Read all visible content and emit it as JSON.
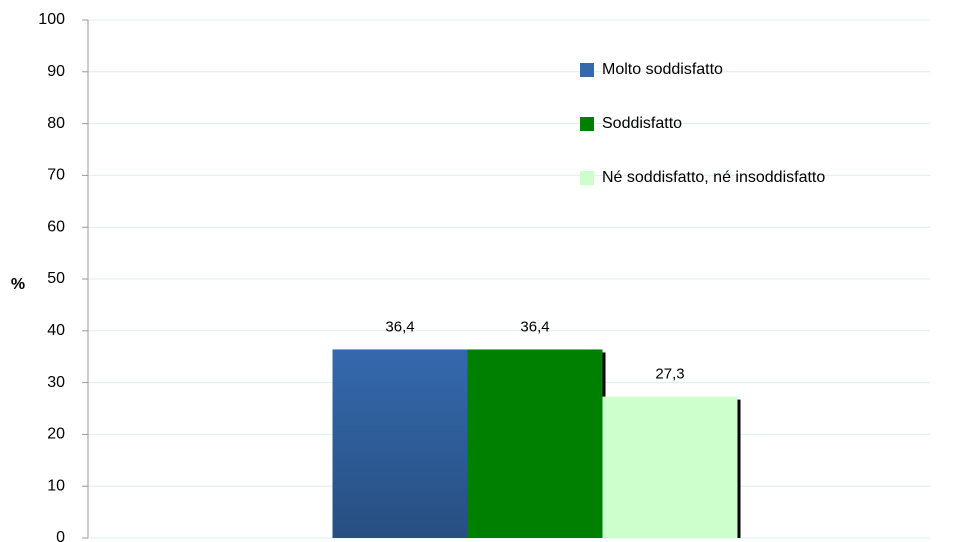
{
  "chart_data": {
    "type": "bar",
    "y_label": "%",
    "categories": [
      null
    ],
    "series": [
      {
        "name": "Molto soddisfatto",
        "color": "#3469ad",
        "values": [
          36.4
        ],
        "value_labels": [
          "36,4"
        ]
      },
      {
        "name": "Soddisfatto",
        "color": "#008000",
        "values": [
          36.4
        ],
        "value_labels": [
          "36,4"
        ]
      },
      {
        "name": "Né soddisfatto, né insoddisfatto",
        "color": "#ccffcc",
        "values": [
          27.3
        ],
        "value_labels": [
          "27,3"
        ]
      }
    ],
    "ylim": [
      0,
      100
    ],
    "yticks": [
      0,
      10,
      20,
      30,
      40,
      50,
      60,
      70,
      80,
      90,
      100
    ],
    "grid": true
  }
}
